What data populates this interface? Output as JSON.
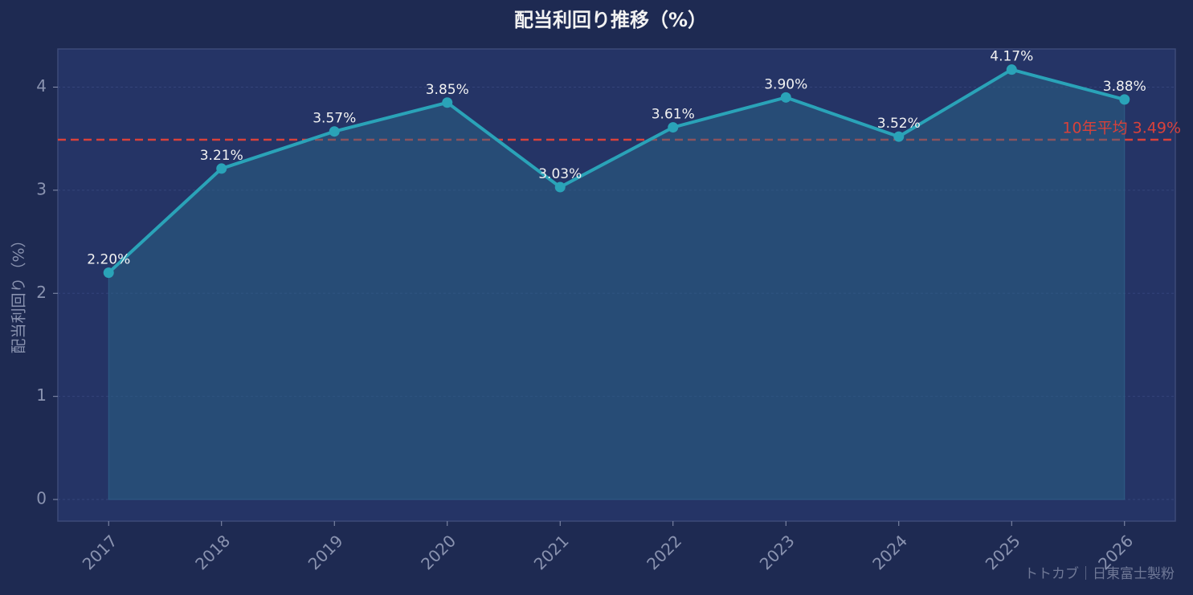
{
  "chart_data": {
    "type": "line",
    "title": "配当利回り推移（%）",
    "ylabel": "配当利回り（%）",
    "categories": [
      "2017",
      "2018",
      "2019",
      "2020",
      "2021",
      "2022",
      "2023",
      "2024",
      "2025",
      "2026"
    ],
    "series": [
      {
        "color": "#2aa3b8",
        "values": [
          2.2,
          3.21,
          3.57,
          3.85,
          3.03,
          3.61,
          3.9,
          3.52,
          4.17,
          3.88
        ],
        "value_labels": [
          "2.20%",
          "3.21%",
          "3.57%",
          "3.85%",
          "3.03%",
          "3.61%",
          "3.90%",
          "3.52%",
          "4.17%",
          "3.88%"
        ]
      }
    ],
    "average": {
      "value": 3.49,
      "label": "10年平均 3.49%",
      "color": "#d9413a"
    },
    "ylim": [
      -0.21,
      4.37
    ],
    "yticks": [
      0,
      1,
      2,
      3,
      4
    ],
    "grid": true,
    "watermark": "トトカブ｜日東富士製粉"
  }
}
